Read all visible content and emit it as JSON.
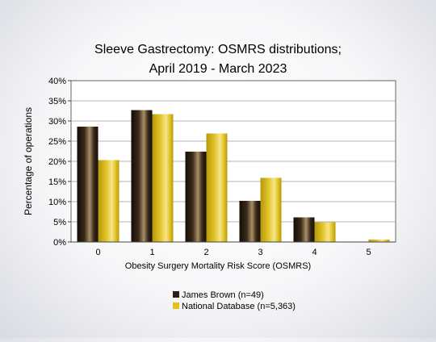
{
  "chart_data": {
    "type": "bar",
    "title": [
      "Sleeve Gastrectomy: OSMRS distributions;",
      "April 2019 - March 2023"
    ],
    "xlabel": "Obesity Surgery Mortality Risk Score (OSMRS)",
    "ylabel": "Percentage of operations",
    "categories": [
      "0",
      "1",
      "2",
      "3",
      "4",
      "5"
    ],
    "ylim": [
      0,
      40
    ],
    "yticks": [
      "0%",
      "5%",
      "10%",
      "15%",
      "20%",
      "25%",
      "30%",
      "35%",
      "40%"
    ],
    "grid": true,
    "legend_position": "bottom-center",
    "series": [
      {
        "name": "James Brown (n=49)",
        "color": "#2b1f14",
        "values": [
          28.6,
          32.7,
          22.4,
          10.2,
          6.1,
          0.0
        ]
      },
      {
        "name": "National Database (n=5,363)",
        "color": "#e0c21f",
        "values": [
          20.3,
          31.7,
          26.9,
          15.9,
          4.9,
          0.6
        ]
      }
    ]
  }
}
